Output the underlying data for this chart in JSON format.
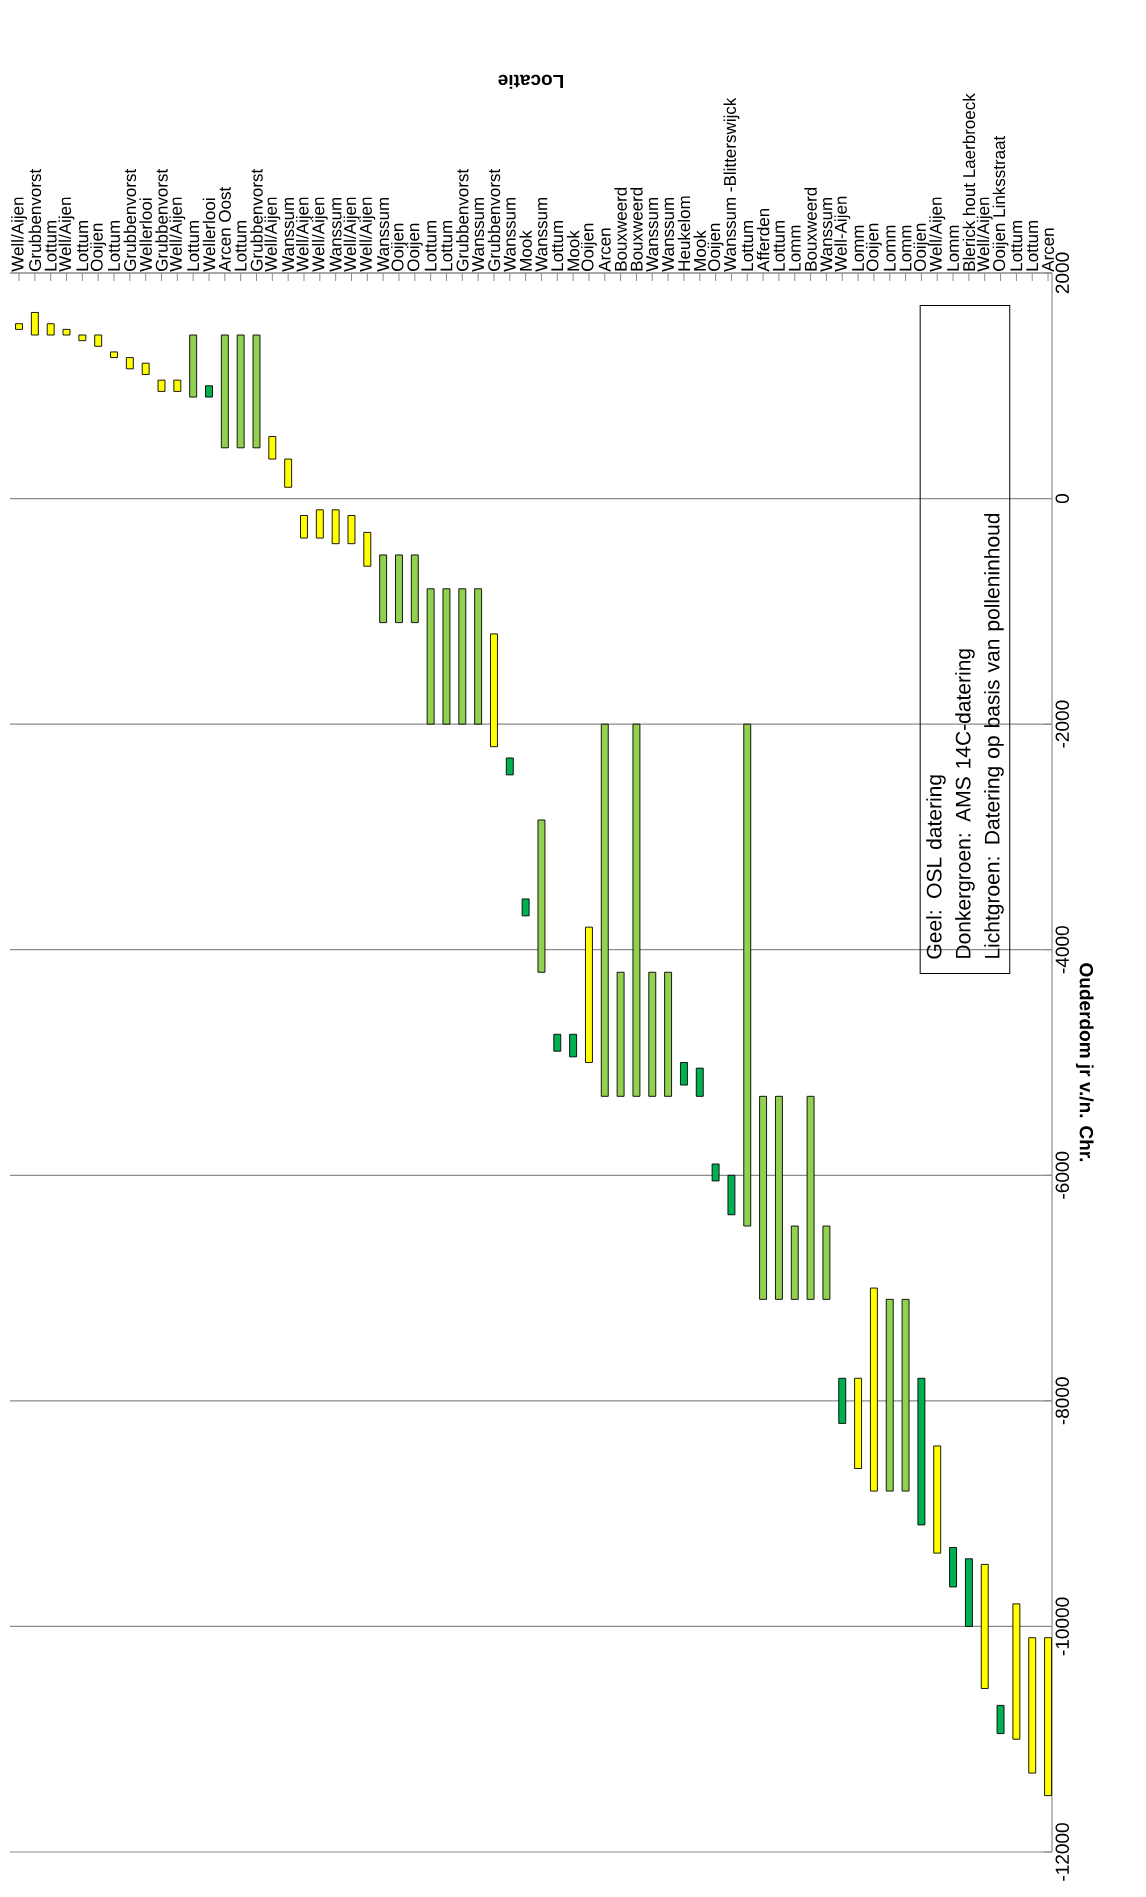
{
  "chart_data": {
    "type": "bar",
    "xlabel": "Locatie",
    "ylabel": "Ouderdom jr v./n. Chr.",
    "categories": [
      "Well/Aijen",
      "Grubbenvorst",
      "Lottum",
      "Well/Aijen",
      "Lottum",
      "Ooijen",
      "Lottum",
      "Grubbenvorst",
      "Wellerlooi",
      "Grubbenvorst",
      "Well/Aijen",
      "Lottum",
      "Wellerlooi",
      "Arcen Oost",
      "Lottum",
      "Grubbenvorst",
      "Well/Aijen",
      "Wanssum",
      "Well/Aijen",
      "Well/Aijen",
      "Wanssum",
      "Well/Aijen",
      "Well/Aijen",
      "Wanssum",
      "Ooijen",
      "Ooijen",
      "Lottum",
      "Lottum",
      "Grubbenvorst",
      "Wanssum",
      "Grubbenvorst",
      "Wanssum",
      "Mook",
      "Wanssum",
      "Lottum",
      "Mook",
      "Ooijen",
      "Arcen",
      "Bouxweerd",
      "Bouxweerd",
      "Wanssum",
      "Wanssum",
      "Heukelom",
      "Mook",
      "Ooijen",
      "Wanssum -Blitterswijck",
      "Lottum",
      "Afferden",
      "Lottum",
      "Lomm",
      "Bouxweerd",
      "Wanssum",
      "Well-Aijen",
      "Lomm",
      "Ooijen",
      "Lomm",
      "Lomm",
      "Ooijen",
      "Well/Aijen",
      "Lomm",
      "Blerick hout Laerbroeck",
      "Well/Aijen",
      "Ooijen Linksstraat",
      "Lottum",
      "Lottum",
      "Arcen"
    ],
    "base": [
      1500,
      1450,
      1450,
      1450,
      1400,
      1350,
      1250,
      1150,
      1100,
      950,
      950,
      900,
      900,
      450,
      450,
      450,
      350,
      100,
      -350,
      -350,
      -400,
      -400,
      -600,
      -1100,
      -1100,
      -1100,
      -2000,
      -2000,
      -2000,
      -2000,
      -2200,
      -2450,
      -3700,
      -4200,
      -4900,
      -4950,
      -5000,
      -5300,
      -5300,
      -5300,
      -5300,
      -5300,
      -5200,
      -5300,
      -6050,
      -6350,
      -6450,
      -7100,
      -7100,
      -7100,
      -7100,
      -7100,
      -8200,
      -8600,
      -8800,
      -8800,
      -8800,
      -9100,
      -9350,
      -9650,
      -10000,
      -10550,
      -10950,
      -11000,
      -11300,
      -11500
    ],
    "values": [
      50,
      200,
      100,
      50,
      50,
      100,
      50,
      100,
      100,
      100,
      100,
      550,
      100,
      1000,
      1000,
      1000,
      200,
      250,
      200,
      250,
      300,
      250,
      300,
      600,
      600,
      600,
      1200,
      1200,
      1200,
      1200,
      1000,
      150,
      150,
      1350,
      150,
      200,
      1200,
      3300,
      1100,
      3300,
      1100,
      1100,
      200,
      250,
      150,
      350,
      4450,
      1800,
      1800,
      650,
      1800,
      650,
      400,
      800,
      1800,
      1700,
      1700,
      1300,
      950,
      350,
      600,
      1100,
      250,
      1200,
      1200,
      1400
    ],
    "colors": [
      "#ffff00",
      "#ffff00",
      "#ffff00",
      "#ffff00",
      "#ffff00",
      "#ffff00",
      "#ffff00",
      "#ffff00",
      "#ffff00",
      "#ffff00",
      "#ffff00",
      "#92d050",
      "#00b050",
      "#92d050",
      "#92d050",
      "#92d050",
      "#ffff00",
      "#ffff00",
      "#ffff00",
      "#ffff00",
      "#ffff00",
      "#ffff00",
      "#ffff00",
      "#92d050",
      "#92d050",
      "#92d050",
      "#92d050",
      "#92d050",
      "#92d050",
      "#92d050",
      "#ffff00",
      "#00b050",
      "#00b050",
      "#92d050",
      "#00b050",
      "#00b050",
      "#ffff00",
      "#92d050",
      "#92d050",
      "#92d050",
      "#92d050",
      "#92d050",
      "#00b050",
      "#00b050",
      "#00b050",
      "#00b050",
      "#92d050",
      "#92d050",
      "#92d050",
      "#92d050",
      "#92d050",
      "#92d050",
      "#00b050",
      "#ffff00",
      "#ffff00",
      "#92d050",
      "#92d050",
      "#00b050",
      "#ffff00",
      "#00b050",
      "#00b050",
      "#ffff00",
      "#00b050",
      "#ffff00",
      "#ffff00",
      "#ffff00"
    ],
    "ylim": [
      -12000,
      2000
    ],
    "yticks": [
      -12000,
      -10000,
      -8000,
      -6000,
      -4000,
      -2000,
      0,
      2000
    ],
    "grid": "y",
    "annotations": [
      "Geel: OSL datering",
      "Donkergroen: AMS 14C-datering",
      "Lichtgroen: Datering op basis van polleninhoud"
    ]
  }
}
